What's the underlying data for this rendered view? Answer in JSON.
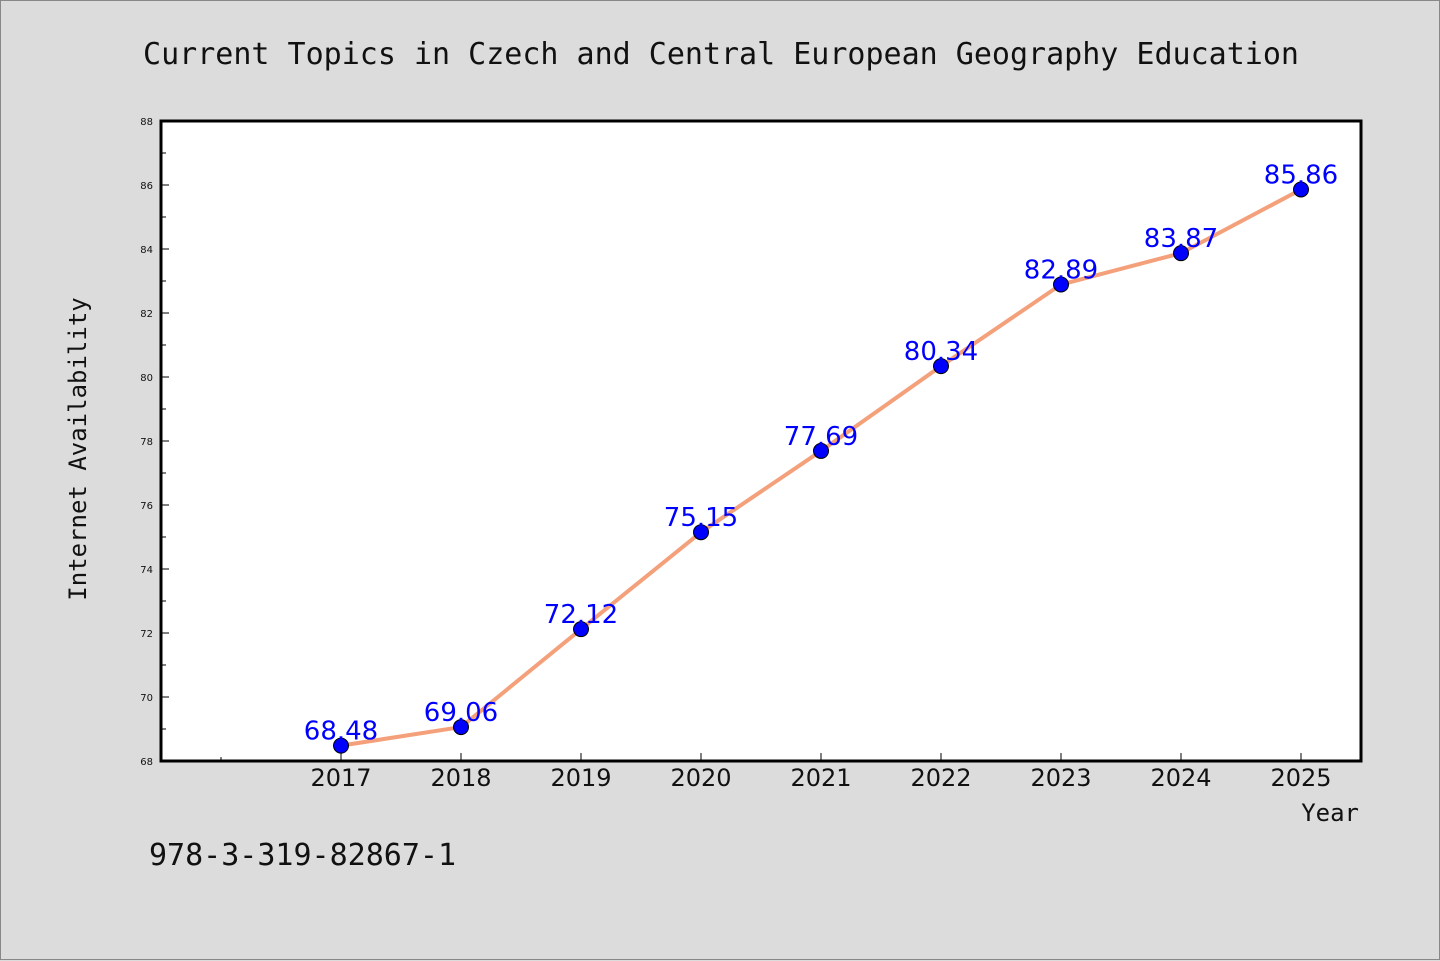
{
  "chart_data": {
    "type": "line",
    "title": "Current Topics in Czech and Central European Geography Education",
    "xlabel": "Year",
    "ylabel": "Internet Availability",
    "x": [
      "2017",
      "2018",
      "2019",
      "2020",
      "2021",
      "2022",
      "2023",
      "2024",
      "2025"
    ],
    "series": [
      {
        "values": [
          68.48,
          69.06,
          72.12,
          75.15,
          77.69,
          80.34,
          82.89,
          83.87,
          85.86
        ],
        "data_labels": [
          "68.48",
          "69.06",
          "72.12",
          "75.15",
          "77.69",
          "80.34",
          "82.89",
          "83.87",
          "85.86"
        ],
        "line_color": "#f4a07a",
        "marker_color": "#0000ff"
      }
    ],
    "ylim": [
      68,
      88
    ],
    "yticks": [
      "68",
      "70",
      "72",
      "74",
      "76",
      "78",
      "80",
      "82",
      "84",
      "86",
      "88"
    ],
    "grid": false,
    "legend": "none"
  },
  "footer": {
    "isbn": "978-3-319-82867-1"
  },
  "colors": {
    "background": "#dcdcdc",
    "plot_background": "#ffffff",
    "line": "#f4a07a",
    "marker": "#0000ff",
    "data_label": "#0000ff"
  }
}
